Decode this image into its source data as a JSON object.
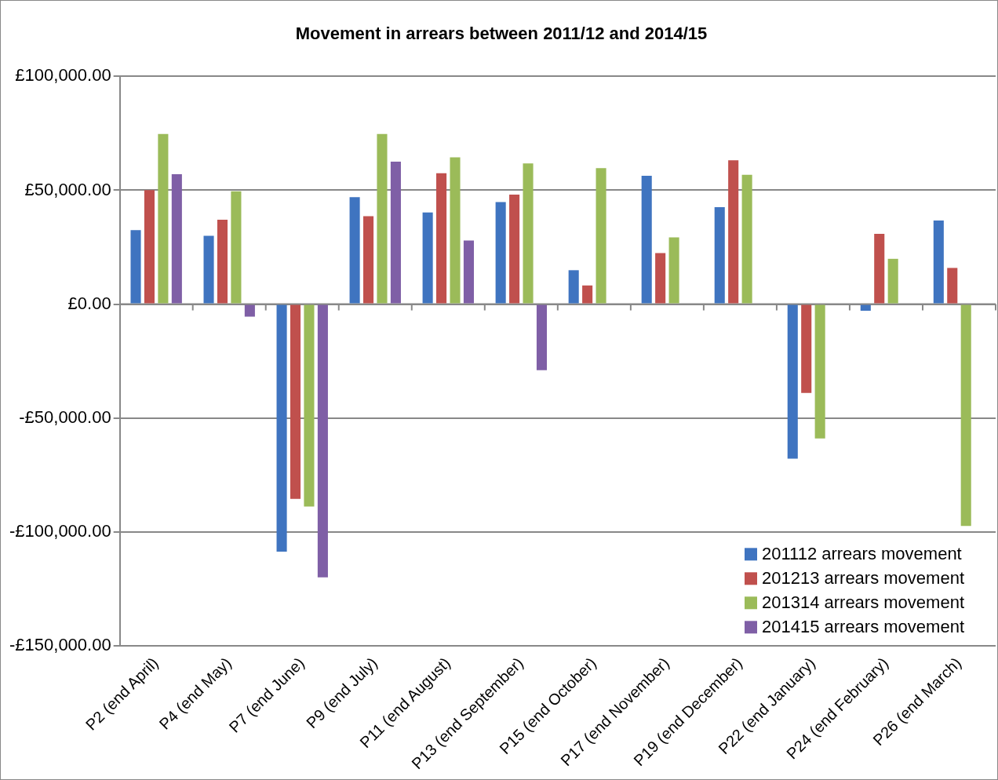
{
  "chart_data": {
    "type": "bar",
    "title": "Movement in arrears between 2011/12 and 2014/15",
    "categories": [
      "P2 (end April)",
      "P4 (end May)",
      "P7 (end June)",
      "P9 (end July)",
      "P11 (end August)",
      "P13 (end September)",
      "P15 (end October)",
      "P17 (end November)",
      "P19 (end December)",
      "P22 (end January)",
      "P24 (end February)",
      "P26 (end March)"
    ],
    "series": [
      {
        "name": "201112 arrears movement",
        "color": "#3f74c0",
        "values": [
          32500,
          30000,
          -108700,
          47000,
          40300,
          44800,
          14900,
          56400,
          42600,
          -67900,
          -2900,
          36700
        ]
      },
      {
        "name": "201213 arrears movement",
        "color": "#c0504d",
        "values": [
          50100,
          37100,
          -85500,
          38600,
          57500,
          48100,
          8200,
          22400,
          63200,
          -39000,
          30900,
          15900
        ]
      },
      {
        "name": "201314 arrears movement",
        "color": "#9bbb59",
        "values": [
          74700,
          49600,
          -88900,
          74700,
          64500,
          61800,
          59700,
          29300,
          56800,
          -59000,
          19900,
          -97400
        ]
      },
      {
        "name": "201415 arrears movement",
        "color": "#7f5fa6",
        "values": [
          57100,
          -5500,
          -120000,
          62600,
          27900,
          -29000,
          null,
          null,
          null,
          null,
          null,
          null
        ]
      }
    ],
    "ylim": [
      -150000,
      100000
    ],
    "yticks": [
      {
        "value": -150000,
        "label": "-£150,000.00"
      },
      {
        "value": -100000,
        "label": "-£100,000.00"
      },
      {
        "value": -50000,
        "label": "-£50,000.00"
      },
      {
        "value": 0,
        "label": "£0.00"
      },
      {
        "value": 50000,
        "label": "£50,000.00"
      },
      {
        "value": 100000,
        "label": "£100,000.00"
      }
    ],
    "grid": "y",
    "legend": "bottom right"
  }
}
